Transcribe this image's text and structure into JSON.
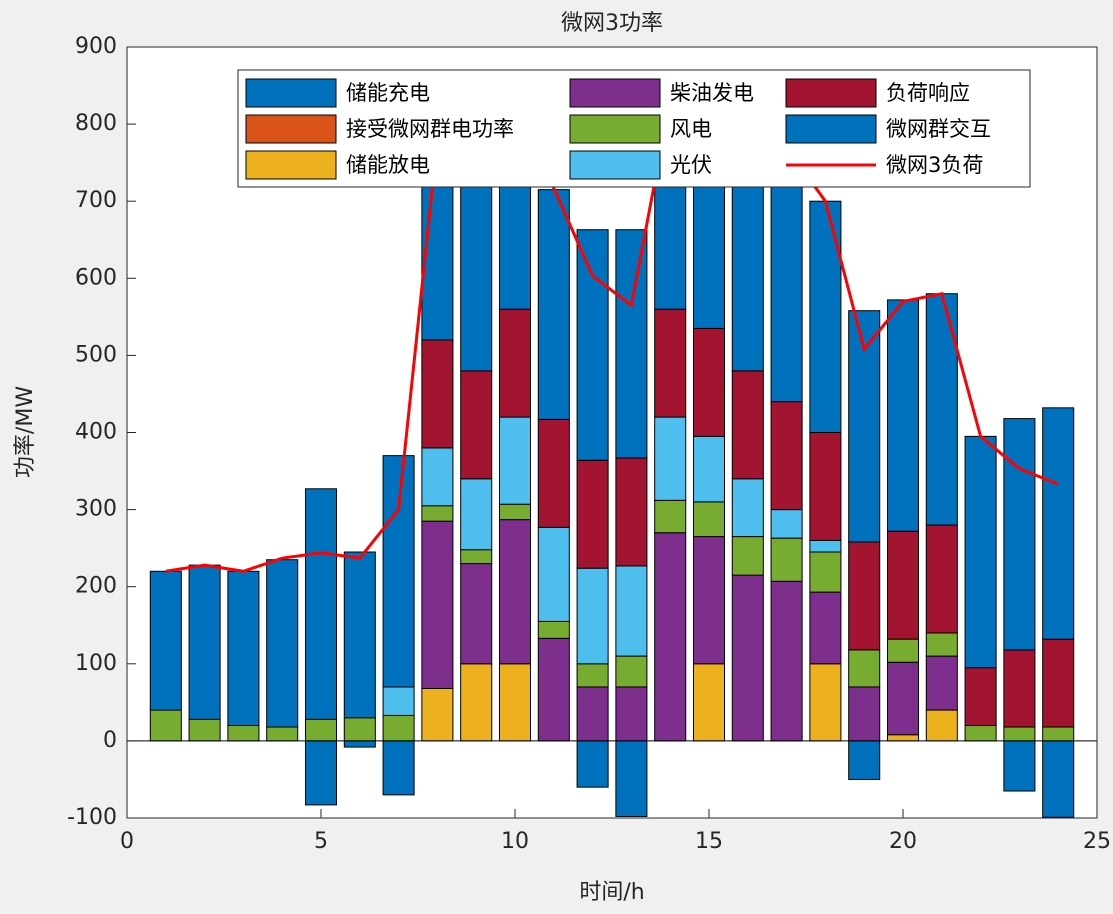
{
  "chart_data": {
    "type": "bar",
    "stacked": true,
    "title": "微网3功率",
    "x_label": "时间/h",
    "y_label": "功率/MW",
    "x": [
      1,
      2,
      3,
      4,
      5,
      6,
      7,
      8,
      9,
      10,
      11,
      12,
      13,
      14,
      15,
      16,
      17,
      18,
      19,
      20,
      21,
      22,
      23,
      24
    ],
    "xlim": [
      0,
      25
    ],
    "xticks": [
      0,
      5,
      10,
      15,
      20,
      25
    ],
    "ylim": [
      -100,
      900
    ],
    "yticks": [
      -100,
      0,
      100,
      200,
      300,
      400,
      500,
      600,
      700,
      800,
      900
    ],
    "series": [
      {
        "name": "储能充电",
        "color": "#0072BD",
        "values": [
          0,
          0,
          0,
          0,
          -83,
          -8,
          -70,
          0,
          0,
          0,
          0,
          -60,
          -98,
          0,
          0,
          0,
          0,
          0,
          -50,
          0,
          0,
          0,
          -65,
          -99
        ]
      },
      {
        "name": "接受微网群电功率",
        "color": "#D95319",
        "values": [
          0,
          0,
          0,
          0,
          0,
          0,
          0,
          0,
          0,
          0,
          0,
          0,
          0,
          0,
          0,
          0,
          0,
          0,
          0,
          0,
          0,
          0,
          0,
          0
        ]
      },
      {
        "name": "储能放电",
        "color": "#EDB120",
        "values": [
          0,
          0,
          0,
          0,
          0,
          0,
          0,
          68,
          100,
          100,
          0,
          0,
          0,
          0,
          100,
          0,
          0,
          100,
          0,
          8,
          40,
          0,
          0,
          0
        ]
      },
      {
        "name": "柴油发电",
        "color": "#7E2F8E",
        "values": [
          0,
          0,
          0,
          0,
          0,
          0,
          0,
          217,
          130,
          187,
          133,
          70,
          70,
          270,
          165,
          215,
          207,
          93,
          70,
          94,
          70,
          0,
          0,
          0
        ]
      },
      {
        "name": "风电",
        "color": "#77AC30",
        "values": [
          40,
          28,
          20,
          18,
          28,
          30,
          33,
          20,
          18,
          20,
          22,
          30,
          40,
          42,
          45,
          50,
          56,
          52,
          48,
          30,
          30,
          20,
          18,
          18
        ]
      },
      {
        "name": "光伏",
        "color": "#4DBEEE",
        "values": [
          0,
          0,
          0,
          0,
          0,
          0,
          37,
          75,
          92,
          113,
          122,
          124,
          117,
          108,
          85,
          75,
          37,
          15,
          0,
          0,
          0,
          0,
          0,
          0
        ]
      },
      {
        "name": "负荷响应",
        "color": "#A2142F",
        "values": [
          0,
          0,
          0,
          0,
          0,
          0,
          0,
          140,
          140,
          140,
          140,
          140,
          140,
          140,
          140,
          140,
          140,
          140,
          140,
          140,
          140,
          75,
          100,
          114
        ]
      },
      {
        "name": "微网群交互",
        "color": "#0072BD",
        "values": [
          180,
          200,
          200,
          217,
          299,
          215,
          300,
          260,
          340,
          250,
          298,
          299,
          296,
          270,
          315,
          360,
          330,
          300,
          300,
          300,
          300,
          300,
          300,
          300
        ]
      },
      {
        "name": "微网3负荷",
        "type": "line",
        "color": "#FF0000",
        "values": [
          220,
          228,
          220,
          237,
          244,
          237,
          300,
          780,
          820,
          810,
          717,
          603,
          565,
          830,
          850,
          840,
          770,
          700,
          508,
          570,
          580,
          395,
          353,
          333
        ]
      }
    ]
  }
}
